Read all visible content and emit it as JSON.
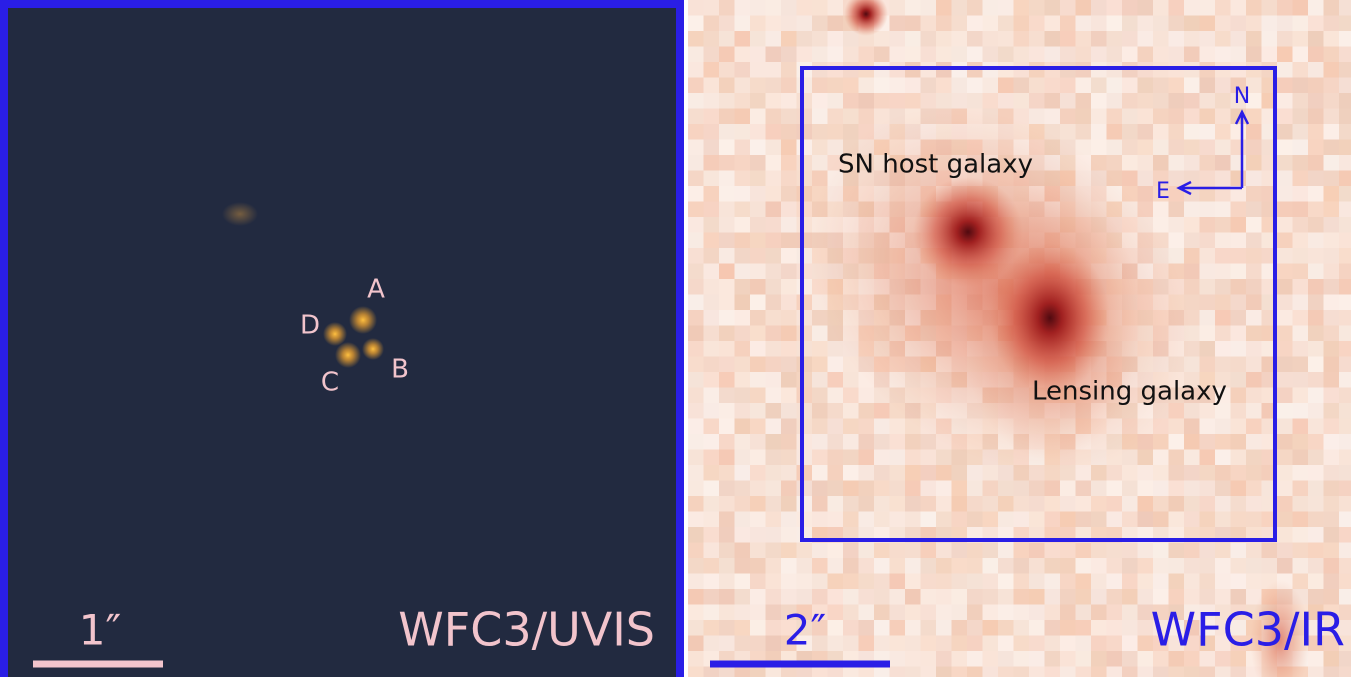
{
  "left_panel": {
    "images": {
      "A": "A",
      "B": "B",
      "C": "C",
      "D": "D"
    },
    "scale_label": "1″",
    "instrument": "WFC3/UVIS"
  },
  "right_panel": {
    "host_label": "SN host galaxy",
    "lens_label": "Lensing galaxy",
    "north": "N",
    "east": "E",
    "scale_label": "2″",
    "instrument": "WFC3/IR"
  }
}
